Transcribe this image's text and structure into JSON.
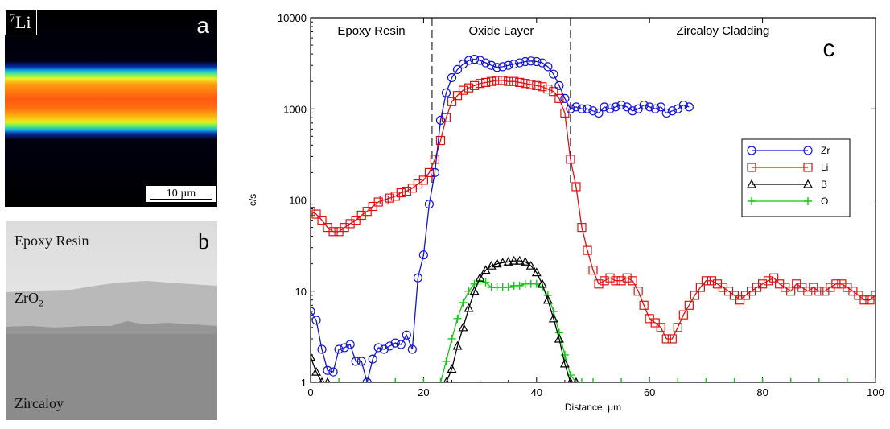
{
  "panel_a": {
    "isotope_mass": "7",
    "isotope_symbol": "Li",
    "letter": "a",
    "scale_bar": "10 µm"
  },
  "panel_b": {
    "letter": "b",
    "layer_top": "Epoxy Resin",
    "layer_mid_base": "ZrO",
    "layer_mid_sub": "2",
    "layer_bottom": "Zircaloy"
  },
  "chart_data": {
    "type": "line",
    "panel_letter": "c",
    "xlabel": "Distance, µm",
    "ylabel": "c/s",
    "xlim": [
      0,
      100
    ],
    "ylim": [
      1,
      10000
    ],
    "yscale": "log",
    "x_ticks": [
      0,
      20,
      40,
      60,
      80,
      100
    ],
    "y_ticks": [
      1,
      10,
      100,
      1000,
      10000
    ],
    "y_tick_labels": [
      "1",
      "10",
      "100",
      "1000",
      "10000"
    ],
    "grid": false,
    "legend_position": "right",
    "regions": [
      {
        "label": "Epoxy Resin",
        "x_from": 0,
        "x_to": 21.5
      },
      {
        "label": "Oxide Layer",
        "x_from": 21.5,
        "x_to": 46
      },
      {
        "label": "Zircaloy Cladding",
        "x_from": 46,
        "x_to": 100
      }
    ],
    "boundaries": [
      21.5,
      46
    ],
    "series": [
      {
        "name": "Zr",
        "color": "#1414d2",
        "marker": "circle",
        "x": [
          0,
          1,
          2,
          3,
          4,
          5,
          6,
          7,
          8,
          9,
          10,
          11,
          12,
          13,
          14,
          15,
          16,
          17,
          18,
          19,
          20,
          21,
          22,
          23,
          24,
          25,
          26,
          27,
          28,
          29,
          30,
          31,
          32,
          33,
          34,
          35,
          36,
          37,
          38,
          39,
          40,
          41,
          42,
          43,
          44,
          45,
          46,
          47,
          48,
          49,
          50,
          51,
          52,
          53,
          54,
          55,
          56,
          57,
          58,
          59,
          60,
          61,
          62,
          63,
          64,
          65,
          66,
          67
        ],
        "y": [
          6,
          4.8,
          2.3,
          1.35,
          1.3,
          2.3,
          2.4,
          2.6,
          1.7,
          1.7,
          1,
          1.8,
          2.4,
          2.3,
          2.5,
          2.7,
          2.6,
          3.3,
          2.3,
          14,
          25,
          90,
          200,
          750,
          1500,
          2200,
          2700,
          3100,
          3400,
          3500,
          3400,
          3200,
          3000,
          2850,
          2900,
          3000,
          3100,
          3200,
          3300,
          3350,
          3300,
          3200,
          2900,
          2400,
          1800,
          1300,
          1000,
          1050,
          1000,
          1000,
          950,
          900,
          1050,
          1000,
          1050,
          1100,
          1050,
          950,
          1000,
          1100,
          1050,
          1000,
          1050,
          900,
          950,
          1000,
          1100,
          1050
        ]
      },
      {
        "name": "Li",
        "color": "#e01010",
        "marker": "square",
        "x": [
          0,
          1,
          2,
          3,
          4,
          5,
          6,
          7,
          8,
          9,
          10,
          11,
          12,
          13,
          14,
          15,
          16,
          17,
          18,
          19,
          20,
          21,
          22,
          23,
          24,
          25,
          26,
          27,
          28,
          29,
          30,
          31,
          32,
          33,
          34,
          35,
          36,
          37,
          38,
          39,
          40,
          41,
          42,
          43,
          44,
          45,
          46,
          47,
          48,
          49,
          50,
          51,
          52,
          53,
          54,
          55,
          56,
          57,
          58,
          59,
          60,
          61,
          62,
          63,
          64,
          65,
          66,
          67,
          68,
          69,
          70,
          71,
          72,
          73,
          74,
          75,
          76,
          77,
          78,
          79,
          80,
          81,
          82,
          83,
          84,
          85,
          86,
          87,
          88,
          89,
          90,
          91,
          92,
          93,
          94,
          95,
          96,
          97,
          98,
          99,
          100
        ],
        "y": [
          75,
          70,
          60,
          50,
          45,
          45,
          50,
          55,
          60,
          68,
          75,
          85,
          95,
          100,
          105,
          110,
          120,
          125,
          135,
          150,
          165,
          200,
          280,
          450,
          800,
          1200,
          1400,
          1600,
          1700,
          1800,
          1900,
          1950,
          2000,
          2050,
          2050,
          2000,
          2000,
          1950,
          1900,
          1850,
          1800,
          1750,
          1650,
          1550,
          1300,
          900,
          280,
          140,
          50,
          28,
          17,
          12,
          13,
          14,
          13,
          13,
          14,
          13,
          10,
          7,
          5,
          4.5,
          4,
          3,
          3,
          4,
          5.5,
          7,
          9,
          11,
          13,
          13,
          12,
          11,
          10,
          9,
          8,
          9,
          10,
          11,
          12,
          13,
          14,
          12,
          11,
          10,
          12,
          11,
          10,
          11,
          10,
          10,
          11,
          12,
          12,
          11,
          10,
          9,
          8,
          8,
          9
        ]
      },
      {
        "name": "B",
        "color": "#000000",
        "marker": "triangle",
        "x": [
          0,
          1,
          2,
          3,
          24,
          25,
          26,
          27,
          28,
          29,
          30,
          31,
          32,
          33,
          34,
          35,
          36,
          37,
          38,
          39,
          40,
          41,
          42,
          43,
          44,
          45,
          46,
          47
        ],
        "y": [
          1.9,
          1.3,
          1,
          1,
          1,
          1.4,
          2.5,
          4,
          6.5,
          10,
          14,
          17,
          19,
          20,
          20.5,
          21,
          21.5,
          21.5,
          21,
          19,
          16,
          12,
          8,
          5,
          3,
          1.6,
          1,
          1
        ]
      },
      {
        "name": "O",
        "color": "#10c810",
        "marker": "plus",
        "x": [
          0,
          5,
          10,
          15,
          20,
          23,
          24,
          25,
          26,
          27,
          28,
          29,
          30,
          31,
          32,
          33,
          34,
          35,
          36,
          37,
          38,
          39,
          40,
          41,
          42,
          43,
          44,
          45,
          46,
          47,
          48,
          50,
          55,
          60,
          65,
          70,
          75,
          80,
          85,
          90,
          95,
          100
        ],
        "y": [
          1,
          1,
          1,
          1,
          1,
          1,
          1.7,
          3,
          5,
          7.5,
          10,
          12,
          13,
          12.5,
          11,
          11,
          11,
          11,
          11.5,
          11.5,
          12,
          12,
          12,
          11,
          9,
          6,
          3.5,
          2,
          1.2,
          1,
          1,
          1,
          1,
          1,
          1,
          1,
          1,
          1,
          1,
          1,
          1,
          1
        ]
      }
    ]
  }
}
